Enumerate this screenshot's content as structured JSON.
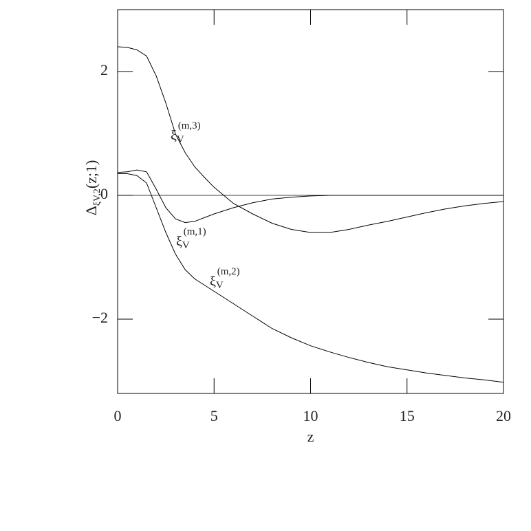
{
  "chart_data": {
    "type": "line",
    "x_label": "z",
    "y_label": {
      "symbol": "Δ",
      "sub": "ξV,2",
      "args": "(z;1)"
    },
    "x": [
      0,
      0.5,
      1,
      1.5,
      2,
      2.5,
      3,
      3.5,
      4,
      4.5,
      5,
      6,
      7,
      8,
      9,
      10,
      11,
      12,
      13,
      14,
      15,
      16,
      17,
      18,
      19,
      20
    ],
    "series": [
      {
        "label_parts": [
          "ξ",
          "V",
          "(m,3)"
        ],
        "color": "#000000",
        "values": [
          2.4,
          2.39,
          2.35,
          2.25,
          1.93,
          1.49,
          0.99,
          0.69,
          0.46,
          0.29,
          0.13,
          -0.13,
          -0.3,
          -0.45,
          -0.55,
          -0.6,
          -0.6,
          -0.55,
          -0.48,
          -0.42,
          -0.35,
          -0.28,
          -0.22,
          -0.17,
          -0.13,
          -0.1
        ]
      },
      {
        "label_parts": [
          "ξ",
          "V",
          "(m,1)"
        ],
        "color": "#000000",
        "values": [
          0.37,
          0.38,
          0.41,
          0.38,
          0.1,
          -0.2,
          -0.38,
          -0.44,
          -0.42,
          -0.36,
          -0.3,
          -0.2,
          -0.12,
          -0.06,
          -0.03,
          -0.01,
          0,
          0,
          0,
          0,
          0,
          0,
          0,
          0,
          0,
          0
        ]
      },
      {
        "label_parts": [
          "ξ",
          "V",
          "(m,2)"
        ],
        "color": "#000000",
        "values": [
          0.35,
          0.35,
          0.32,
          0.2,
          -0.2,
          -0.6,
          -0.95,
          -1.2,
          -1.35,
          -1.45,
          -1.55,
          -1.75,
          -1.95,
          -2.15,
          -2.3,
          -2.43,
          -2.53,
          -2.62,
          -2.7,
          -2.77,
          -2.82,
          -2.87,
          -2.91,
          -2.95,
          -2.98,
          -3.02
        ]
      }
    ],
    "hline": 0,
    "xlim": [
      0,
      20
    ],
    "xticks": [
      0,
      5,
      10,
      15,
      20
    ],
    "ylim": [
      -3.2,
      3.0
    ],
    "yticks": [
      {
        "value": -2,
        "label": "−2"
      },
      0,
      2
    ]
  }
}
